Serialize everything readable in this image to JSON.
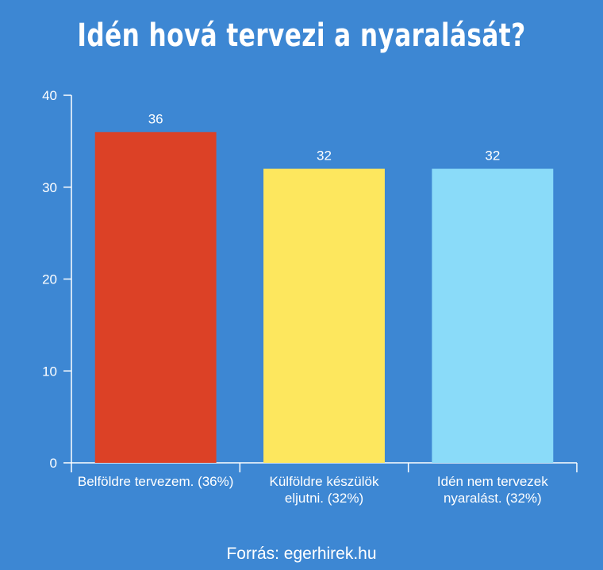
{
  "title": "Idén hová tervezi a nyaralását?",
  "source": "Forrás: egerhirek.hu",
  "chart_data": {
    "type": "bar",
    "title": "Idén hová tervezi a nyaralását?",
    "categories": [
      [
        "Belföldre tervezem. (36%)"
      ],
      [
        "Külföldre készülök",
        "eljutni. (32%)"
      ],
      [
        "Idén nem tervezek",
        "nyaralást. (32%)"
      ]
    ],
    "values": [
      36,
      32,
      32
    ],
    "data_labels": [
      "36",
      "32",
      "32"
    ],
    "bar_colors": [
      "#dc4126",
      "#fde75e",
      "#8adbf9"
    ],
    "ylim": [
      0,
      40
    ],
    "yticks": [
      0,
      10,
      20,
      30,
      40
    ],
    "xlabel": "",
    "ylabel": "",
    "grid": false,
    "legend": "none"
  }
}
